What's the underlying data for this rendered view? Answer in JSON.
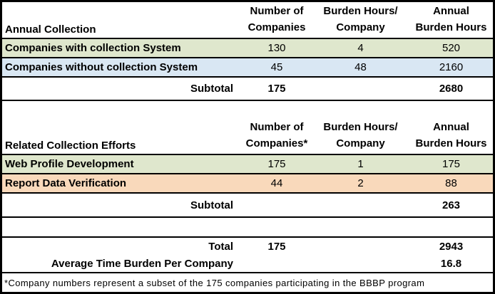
{
  "colors": {
    "green": "#dfe7cd",
    "blue": "#d9e7f3",
    "orange": "#f9d9bb",
    "border": "#000000"
  },
  "annual_collection": {
    "title": "Annual Collection",
    "headers": [
      "Number of\nCompanies",
      "Burden Hours/\nCompany",
      "Annual\nBurden Hours"
    ],
    "rows": [
      {
        "label": "Companies with collection System",
        "num_companies": "130",
        "burden_per_company": "4",
        "annual_burden": "520"
      },
      {
        "label": "Companies without collection System",
        "num_companies": "45",
        "burden_per_company": "48",
        "annual_burden": "2160"
      }
    ],
    "subtotal": {
      "label": "Subtotal",
      "num_companies": "175",
      "burden_per_company": "",
      "annual_burden": "2680"
    }
  },
  "related_collection": {
    "title": "Related Collection Efforts",
    "headers": [
      "Number of\nCompanies*",
      "Burden Hours/\nCompany",
      "Annual\nBurden Hours"
    ],
    "rows": [
      {
        "label": "Web Profile Development",
        "num_companies": "175",
        "burden_per_company": "1",
        "annual_burden": "175"
      },
      {
        "label": "Report Data Verification",
        "num_companies": "44",
        "burden_per_company": "2",
        "annual_burden": "88"
      }
    ],
    "subtotal": {
      "label": "Subtotal",
      "num_companies": "",
      "burden_per_company": "",
      "annual_burden": "263"
    }
  },
  "totals": {
    "total_label": "Total",
    "total_num_companies": "175",
    "total_annual_burden": "2943",
    "average_label": "Average Time Burden Per Company",
    "average_value": "16.8"
  },
  "footnote": "*Company numbers represent a subset of the 175 companies participating in the BBBP program"
}
